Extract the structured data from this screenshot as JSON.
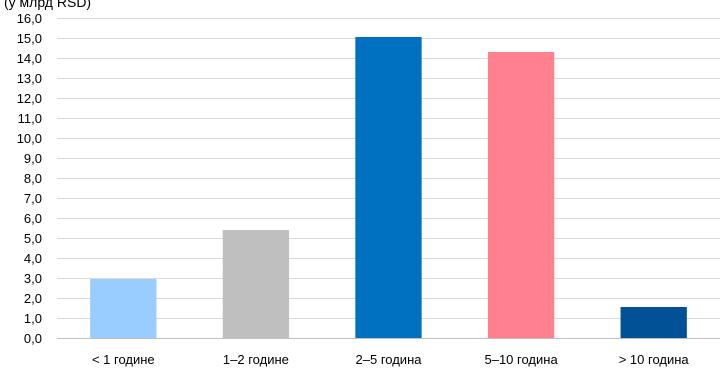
{
  "chart_data": {
    "type": "bar",
    "ylabel": "(у млрд RSD)",
    "categories": [
      "< 1 године",
      "1–2 године",
      "2–5 година",
      "5–10 година",
      "> 10 година"
    ],
    "values": [
      2.95,
      5.4,
      15.05,
      14.3,
      1.55
    ],
    "colors": [
      "#99CCFF",
      "#BFBFBF",
      "#0070C0",
      "#FF808F",
      "#005196"
    ],
    "ylim": [
      0,
      16
    ],
    "ytick_step": 1,
    "yticks": [
      "0,0",
      "1,0",
      "2,0",
      "3,0",
      "4,0",
      "5,0",
      "6,0",
      "7,0",
      "8,0",
      "9,0",
      "10,0",
      "11,0",
      "12,0",
      "13,0",
      "14,0",
      "15,0",
      "16,0"
    ],
    "grid": true,
    "legend": "none"
  }
}
